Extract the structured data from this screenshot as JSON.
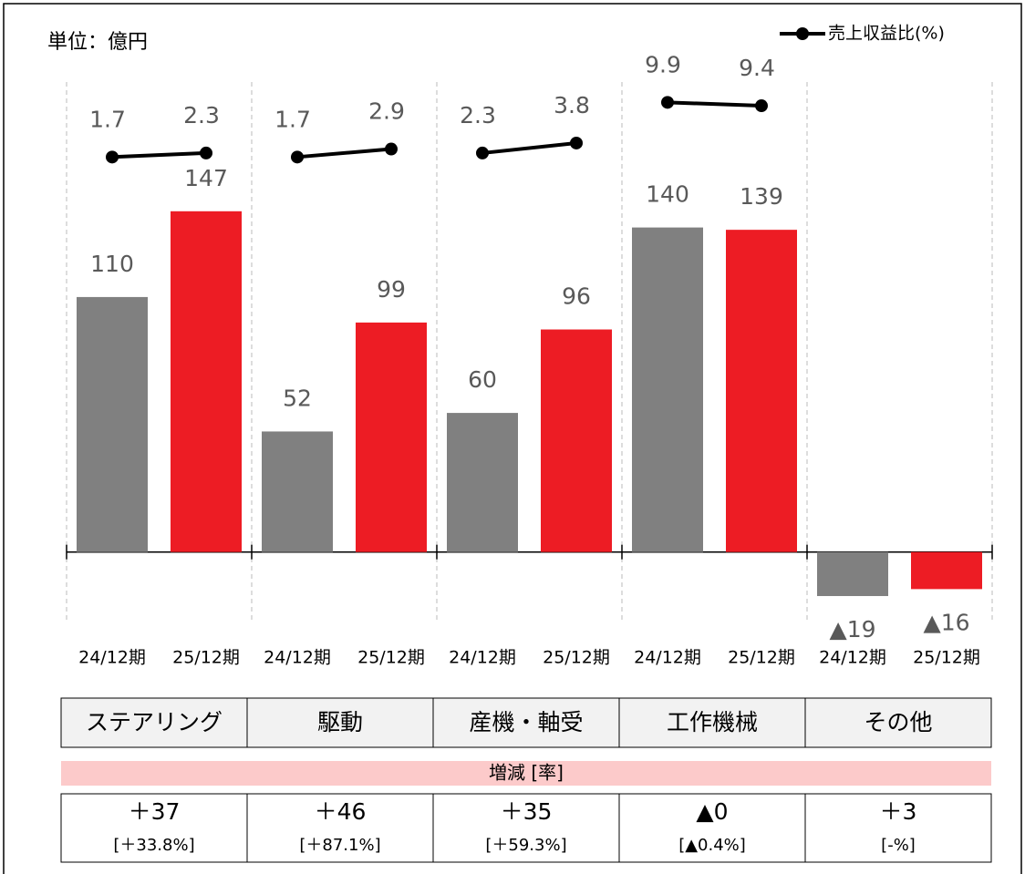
{
  "chart_data": {
    "type": "bar",
    "unit_label": "単位：億円",
    "groups": [
      "ステアリング",
      "駆動",
      "産機・軸受",
      "工作機械",
      "その他"
    ],
    "series": [
      {
        "name": "24/12期",
        "color": "#808080",
        "values": [
          110,
          52,
          60,
          140,
          -19
        ],
        "value_labels": [
          "110",
          "52",
          "60",
          "140",
          "▲19"
        ]
      },
      {
        "name": "25/12期",
        "color": "#ed1c24",
        "values": [
          147,
          99,
          96,
          139,
          -16
        ],
        "value_labels": [
          "147",
          "99",
          "96",
          "139",
          "▲16"
        ]
      }
    ],
    "line": {
      "name": "売上収益比(%)",
      "color": "#000000",
      "axis": "y2",
      "values": [
        [
          1.7,
          2.3
        ],
        [
          1.7,
          2.9
        ],
        [
          2.3,
          3.8
        ],
        [
          9.9,
          9.4
        ],
        [
          null,
          null
        ]
      ]
    },
    "ylim": [
      -30,
      200
    ],
    "y2lim": [
      -68,
      12
    ],
    "change_header": "増減 [率]",
    "changes": [
      {
        "amount": "＋37",
        "rate": "[＋33.8%]"
      },
      {
        "amount": "＋46",
        "rate": "[＋87.1%]"
      },
      {
        "amount": "＋35",
        "rate": "[＋59.3%]"
      },
      {
        "amount": "▲0",
        "rate": "[▲0.4%]"
      },
      {
        "amount": "＋3",
        "rate": "[-%]"
      }
    ]
  }
}
